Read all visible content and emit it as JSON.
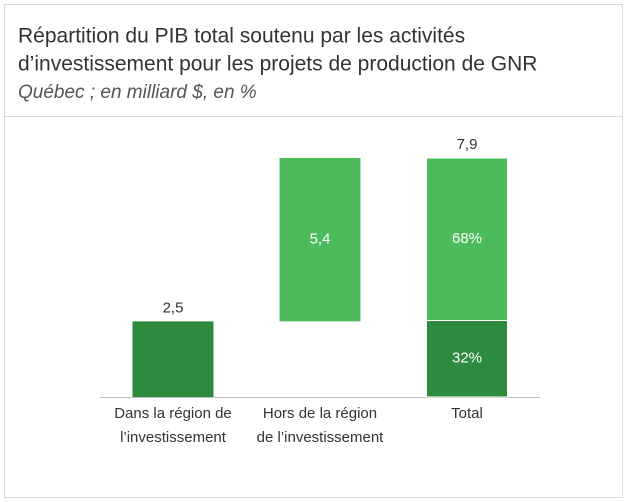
{
  "chart_data": {
    "type": "waterfall",
    "title": [
      "Répartition du PIB total soutenu par les activités",
      "d’investissement pour les projets de production de GNR"
    ],
    "subtitle": "Québec ; en milliard $, en %",
    "categories": [
      [
        "Dans la région de",
        "l’investissement"
      ],
      [
        "Hors de la région",
        "de l’investissement"
      ],
      [
        "Total"
      ]
    ],
    "values": [
      2.5,
      5.4,
      7.9
    ],
    "value_labels": [
      "2,5",
      "5,4",
      "7,9"
    ],
    "colors": [
      "#2e8b3d",
      "#4cbb5c",
      "#4cbb5c"
    ],
    "total_shares": {
      "values": [
        32,
        68
      ],
      "value_labels": [
        "32%",
        "68%"
      ],
      "colors": [
        "#2e8b3d",
        "#4cbb5c"
      ]
    }
  }
}
